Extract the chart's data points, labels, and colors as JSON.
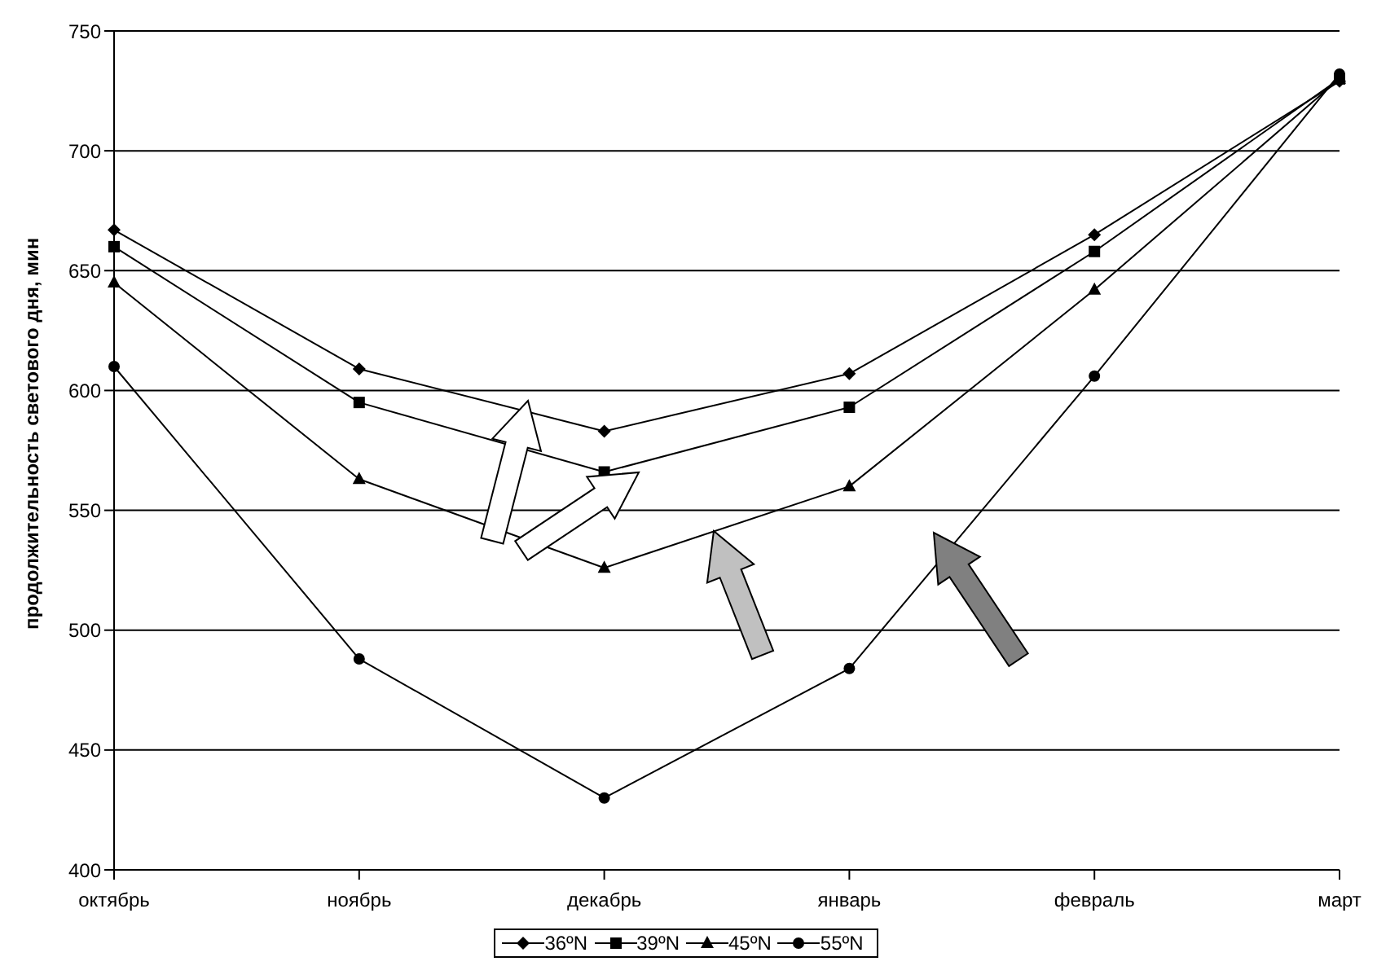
{
  "chart_data": {
    "type": "line",
    "ylabel": "продолжительность светового дня, мин",
    "categories": [
      "октябрь",
      "ноябрь",
      "декабрь",
      "январь",
      "февраль",
      "март"
    ],
    "series": [
      {
        "name": "36ºN",
        "color": "#000000",
        "marker": "diamond",
        "values": [
          667,
          609,
          583,
          607,
          665,
          729
        ]
      },
      {
        "name": "39ºN",
        "color": "#000000",
        "marker": "square",
        "values": [
          660,
          595,
          566,
          593,
          658,
          730
        ]
      },
      {
        "name": "45ºN",
        "color": "#000000",
        "marker": "triangle",
        "values": [
          645,
          563,
          526,
          560,
          642,
          730
        ]
      },
      {
        "name": "55ºN",
        "color": "#000000",
        "marker": "circle",
        "values": [
          610,
          488,
          430,
          484,
          606,
          732
        ]
      }
    ],
    "ylim": [
      400,
      750
    ],
    "yticks": [
      400,
      450,
      500,
      550,
      600,
      650,
      700,
      750
    ],
    "grid": "y",
    "legend": "bottom"
  }
}
